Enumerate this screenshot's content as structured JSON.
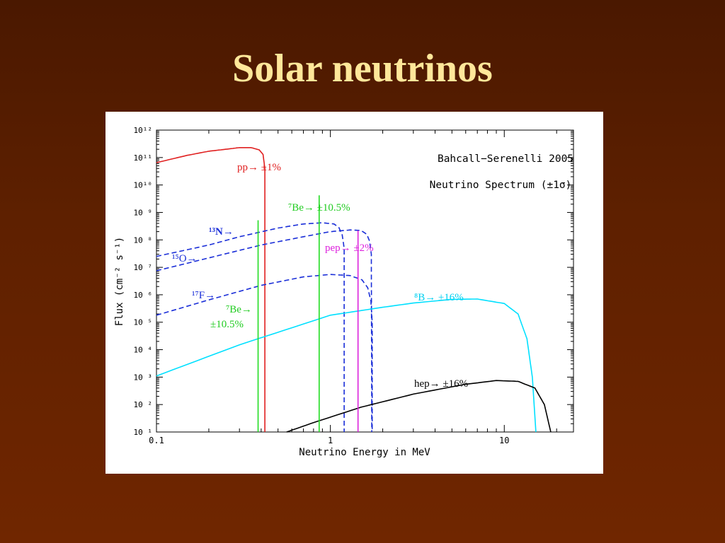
{
  "slide": {
    "title": "Solar neutrinos"
  },
  "chart_data": {
    "type": "line",
    "title": "Bahcall−Serenelli 2005",
    "subtitle": "Neutrino Spectrum (±1σ)",
    "xlabel": "Neutrino Energy in MeV",
    "ylabel": "Flux (cm⁻² s⁻¹)",
    "xscale": "log",
    "yscale": "log",
    "xlim": [
      0.1,
      25
    ],
    "ylim": [
      10,
      1000000000000.0
    ],
    "grid": false,
    "x_ticks": [
      {
        "value": 0.1,
        "label": "0.1"
      },
      {
        "value": 1,
        "label": "1"
      },
      {
        "value": 10,
        "label": "10"
      }
    ],
    "y_ticks": [
      {
        "value": 1000000000000.0,
        "label": "10¹²"
      },
      {
        "value": 100000000000.0,
        "label": "10¹¹"
      },
      {
        "value": 10000000000.0,
        "label": "10¹⁰"
      },
      {
        "value": 1000000000.0,
        "label": "10 ⁹"
      },
      {
        "value": 100000000.0,
        "label": "10 ⁸"
      },
      {
        "value": 10000000.0,
        "label": "10 ⁷"
      },
      {
        "value": 1000000.0,
        "label": "10 ⁶"
      },
      {
        "value": 100000.0,
        "label": "10 ⁵"
      },
      {
        "value": 10000.0,
        "label": "10 ⁴"
      },
      {
        "value": 1000.0,
        "label": "10 ³"
      },
      {
        "value": 100.0,
        "label": "10 ²"
      },
      {
        "value": 10,
        "label": "10 ¹"
      }
    ],
    "series": [
      {
        "name": "pp",
        "color": "#e02020",
        "style": "solid",
        "label": "pp→ ±1%",
        "points": [
          [
            0.1,
            65000000000.0
          ],
          [
            0.15,
            120000000000.0
          ],
          [
            0.2,
            170000000000.0
          ],
          [
            0.25,
            200000000000.0
          ],
          [
            0.3,
            230000000000.0
          ],
          [
            0.35,
            230000000000.0
          ],
          [
            0.39,
            190000000000.0
          ],
          [
            0.41,
            130000000000.0
          ],
          [
            0.42,
            40000000000.0
          ],
          [
            0.42,
            10
          ]
        ]
      },
      {
        "name": "13N",
        "color": "#1a2ed8",
        "style": "dashed",
        "label": "¹³N→",
        "points": [
          [
            0.1,
            25000000.0
          ],
          [
            0.2,
            65000000.0
          ],
          [
            0.3,
            130000000.0
          ],
          [
            0.5,
            270000000.0
          ],
          [
            0.7,
            380000000.0
          ],
          [
            0.9,
            420000000.0
          ],
          [
            1.05,
            380000000.0
          ],
          [
            1.12,
            280000000.0
          ],
          [
            1.17,
            150000000.0
          ],
          [
            1.2,
            50000000.0
          ],
          [
            1.2,
            10
          ]
        ]
      },
      {
        "name": "15O",
        "color": "#1a2ed8",
        "style": "dashed",
        "label": "¹⁵O→",
        "points": [
          [
            0.1,
            7500000.0
          ],
          [
            0.2,
            22000000.0
          ],
          [
            0.4,
            65000000.0
          ],
          [
            0.7,
            130000000.0
          ],
          [
            1.0,
            200000000.0
          ],
          [
            1.3,
            230000000.0
          ],
          [
            1.5,
            220000000.0
          ],
          [
            1.62,
            160000000.0
          ],
          [
            1.68,
            90000000.0
          ],
          [
            1.72,
            30000000.0
          ],
          [
            1.73,
            10
          ]
        ]
      },
      {
        "name": "17F",
        "color": "#1a2ed8",
        "style": "dashed",
        "label": "¹⁷F→",
        "points": [
          [
            0.1,
            180000.0
          ],
          [
            0.2,
            650000.0
          ],
          [
            0.4,
            2200000.0
          ],
          [
            0.7,
            4500000.0
          ],
          [
            1.0,
            5500000.0
          ],
          [
            1.3,
            5000000.0
          ],
          [
            1.52,
            3500000.0
          ],
          [
            1.64,
            1800000.0
          ],
          [
            1.71,
            600000.0
          ],
          [
            1.74,
            100000.0
          ],
          [
            1.74,
            10
          ]
        ]
      },
      {
        "name": "8B",
        "color": "#00e0ff",
        "style": "solid",
        "label": "⁸B→ ±16%",
        "points": [
          [
            0.1,
            1100.0
          ],
          [
            0.3,
            15000.0
          ],
          [
            1,
            180000.0
          ],
          [
            2,
            350000.0
          ],
          [
            3,
            500000.0
          ],
          [
            5,
            680000.0
          ],
          [
            7,
            700000.0
          ],
          [
            10,
            480000.0
          ],
          [
            12,
            200000.0
          ],
          [
            13.5,
            25000.0
          ],
          [
            14.5,
            1000.0
          ],
          [
            15.2,
            10
          ]
        ]
      },
      {
        "name": "hep",
        "color": "#000000",
        "style": "solid",
        "label": "hep→ ±16%",
        "points": [
          [
            0.56,
            10
          ],
          [
            0.8,
            22
          ],
          [
            1.5,
            80
          ],
          [
            3,
            240
          ],
          [
            6,
            550
          ],
          [
            9,
            750
          ],
          [
            12,
            700
          ],
          [
            15,
            400
          ],
          [
            17,
            100
          ],
          [
            18.5,
            10
          ]
        ]
      }
    ],
    "lines": [
      {
        "name": "7Be-0.38",
        "color": "#22dd22",
        "x": 0.384,
        "ymin": 10,
        "ymax": 520000000.0,
        "label": "⁷Be→ ±10.5%"
      },
      {
        "name": "7Be-0.86",
        "color": "#22dd22",
        "x": 0.862,
        "ymin": 10,
        "ymax": 4200000000.0,
        "label": "⁷Be→ ±10.5%"
      },
      {
        "name": "pep",
        "color": "#dd22dd",
        "x": 1.442,
        "ymin": 10,
        "ymax": 220000000.0,
        "label": "pep→ ±2%"
      }
    ]
  }
}
